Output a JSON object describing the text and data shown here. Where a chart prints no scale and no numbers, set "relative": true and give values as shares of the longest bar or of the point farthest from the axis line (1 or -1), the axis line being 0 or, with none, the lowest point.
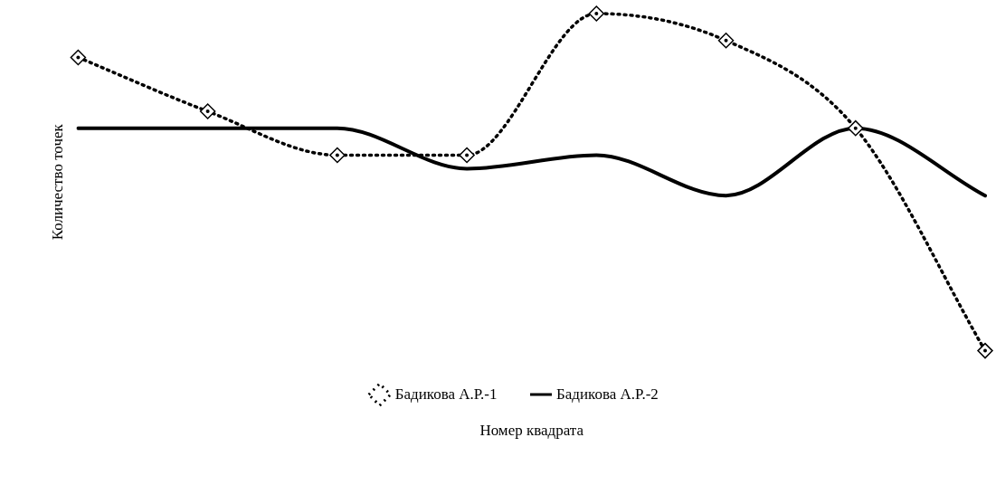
{
  "chart_data": {
    "type": "line",
    "relative": true,
    "xlabel": "Номер квадрата",
    "ylabel": "Количество точек",
    "categories": [
      null,
      null,
      null,
      null,
      null,
      null,
      null,
      null
    ],
    "tick_labels": false,
    "grid": false,
    "legend": "bottom",
    "series": [
      {
        "name": "Бадикова А.Р.-1",
        "color": "#000000",
        "marker": "diamond",
        "line_style": "dotted",
        "values": [
          0.87,
          0.71,
          0.58,
          0.58,
          1,
          0.92,
          0.66,
          0
        ]
      },
      {
        "name": "Бадикова А.Р.-2",
        "color": "#000000",
        "marker": "none",
        "line_style": "solid",
        "values": [
          0.66,
          0.66,
          0.66,
          0.54,
          0.58,
          0.46,
          0.66,
          0.46
        ]
      }
    ]
  }
}
